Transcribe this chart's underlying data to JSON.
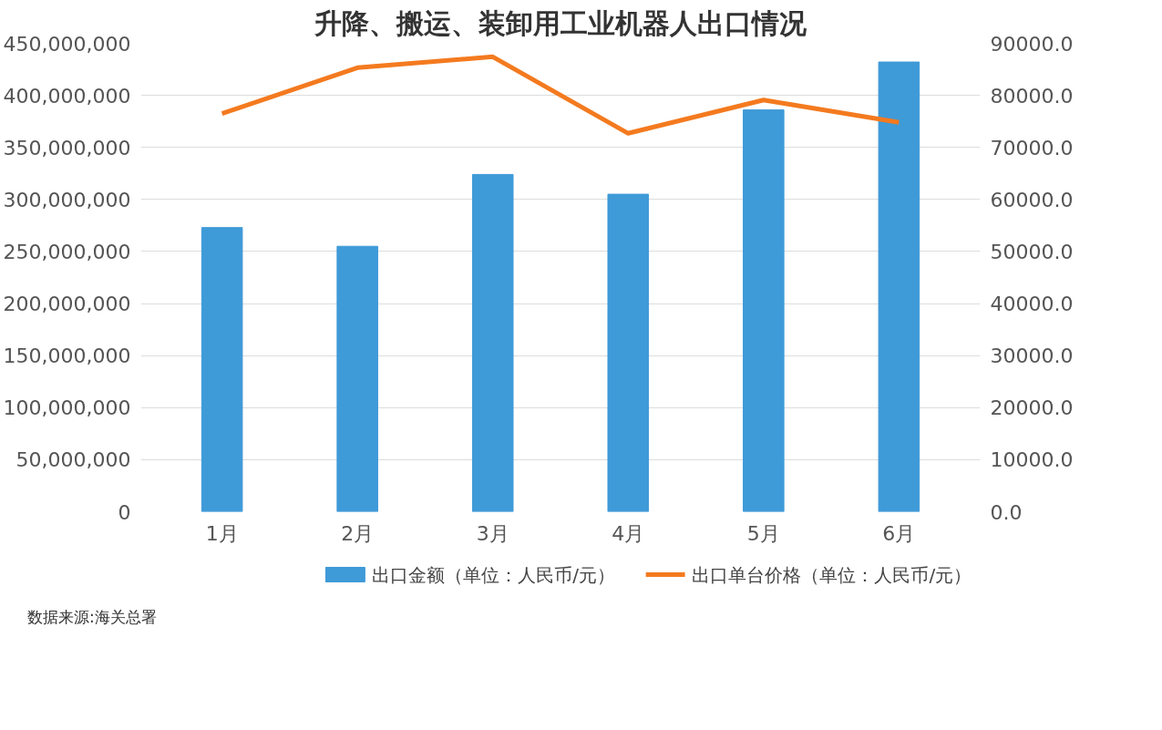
{
  "chart_data": {
    "type": "bar",
    "title": "升降、搬运、装卸用工业机器人出口情况",
    "categories": [
      "1月",
      "2月",
      "3月",
      "4月",
      "5月",
      "6月"
    ],
    "series": [
      {
        "name": "出口金额（单位：人民币/元）",
        "type": "bar",
        "color": "#3f9ad8",
        "values": [
          273000000,
          255000000,
          324000000,
          305000000,
          386000000,
          432000000
        ]
      },
      {
        "name": "出口单台价格（单位：人民币/元）",
        "type": "line",
        "axis": "y2",
        "color": "#f47a1f",
        "values": [
          76500,
          85300,
          87400,
          72700,
          79100,
          74800
        ]
      }
    ],
    "ylim": [
      0,
      450000000
    ],
    "yticks": [
      {
        "value": 0,
        "label": "0"
      },
      {
        "value": 50000000,
        "label": "50,000,000"
      },
      {
        "value": 100000000,
        "label": "100,000,000"
      },
      {
        "value": 150000000,
        "label": "150,000,000"
      },
      {
        "value": 200000000,
        "label": "200,000,000"
      },
      {
        "value": 250000000,
        "label": "250,000,000"
      },
      {
        "value": 300000000,
        "label": "300,000,000"
      },
      {
        "value": 350000000,
        "label": "350,000,000"
      },
      {
        "value": 400000000,
        "label": "400,000,000"
      },
      {
        "value": 450000000,
        "label": "450,000,000"
      }
    ],
    "y2lim": [
      0,
      90000
    ],
    "y2ticks": [
      {
        "value": 0,
        "label": "0.0"
      },
      {
        "value": 10000,
        "label": "10000.0"
      },
      {
        "value": 20000,
        "label": "20000.0"
      },
      {
        "value": 30000,
        "label": "30000.0"
      },
      {
        "value": 40000,
        "label": "40000.0"
      },
      {
        "value": 50000,
        "label": "50000.0"
      },
      {
        "value": 60000,
        "label": "60000.0"
      },
      {
        "value": 70000,
        "label": "70000.0"
      },
      {
        "value": 80000,
        "label": "80000.0"
      },
      {
        "value": 90000,
        "label": "90000.0"
      }
    ],
    "grid": "y",
    "legend": "bottom",
    "line_style": "solid",
    "marker": "none",
    "annotations": [
      "数据来源:海关总署"
    ]
  }
}
